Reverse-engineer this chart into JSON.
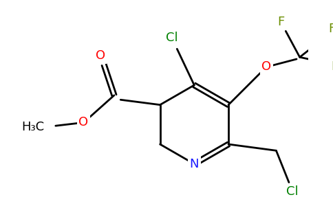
{
  "bg_color": "#ffffff",
  "atom_colors": {
    "C": "#000000",
    "N": "#1a1aff",
    "O": "#ff0000",
    "F": "#6b8e00",
    "Cl": "#008000"
  },
  "figsize": [
    4.84,
    3.0
  ],
  "dpi": 100,
  "lw": 2.0,
  "fs": 12
}
